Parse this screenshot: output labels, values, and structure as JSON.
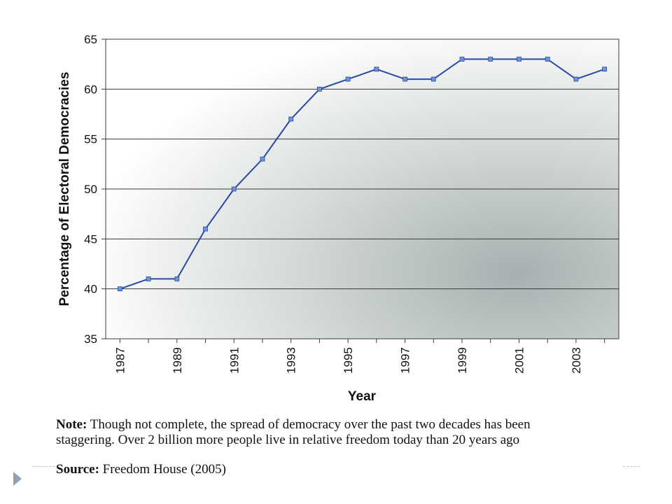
{
  "chart_data": {
    "type": "line",
    "title": "",
    "xlabel": "Year",
    "ylabel": "Percentage of Electoral Democracies",
    "x": [
      1987,
      1988,
      1989,
      1990,
      1991,
      1992,
      1993,
      1994,
      1995,
      1996,
      1997,
      1998,
      1999,
      2000,
      2001,
      2002,
      2003,
      2004
    ],
    "series": [
      {
        "values": [
          40,
          41,
          41,
          46,
          50,
          53,
          57,
          60,
          61,
          62,
          61,
          61,
          63,
          63,
          63,
          63,
          61,
          62
        ]
      }
    ],
    "xticks": [
      "1987",
      "1989",
      "1991",
      "1993",
      "1995",
      "1997",
      "1999",
      "2001",
      "2003"
    ],
    "yticks": [
      "35",
      "40",
      "45",
      "50",
      "55",
      "60",
      "65"
    ],
    "ylim": [
      35,
      65
    ],
    "xlim": [
      1986.5,
      2004.5
    ],
    "grid": true,
    "legend": "none",
    "colors": {
      "line": "#2a4aa0",
      "marker": "#6d93d8",
      "grid": "#3a3a3a"
    }
  },
  "note": {
    "label": "Note:",
    "line1": "Though not complete, the spread of democracy over the past two decades has been",
    "line2": "staggering.  Over 2 billion more people live in relative freedom today than 20 years ago"
  },
  "source": {
    "label": "Source:",
    "text": "Freedom House (2005)"
  },
  "slide": {
    "bullet_icon": "triangle-bullet-icon"
  }
}
